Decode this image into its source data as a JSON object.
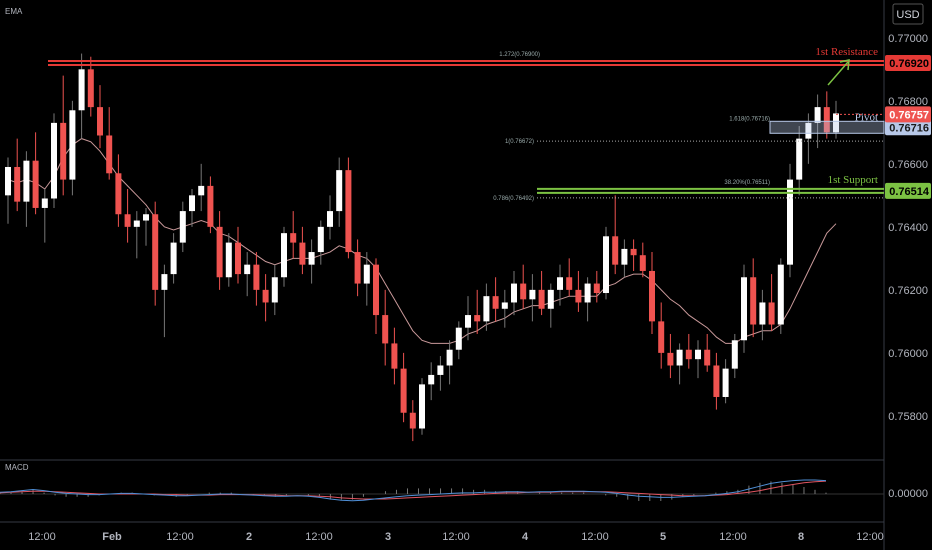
{
  "header": {
    "indicator_label": "EMA",
    "currency": "USD"
  },
  "macd_panel": {
    "label": "MACD",
    "zero_label": "0.00000"
  },
  "colors": {
    "background": "#000000",
    "bull_candle": "#ffffff",
    "bear_candle": "#ef5350",
    "resistance": "#e53935",
    "support": "#7cc243",
    "pivot_band": "#b7c8e8",
    "ema": "#c9999a",
    "macd_line": "#4f8fd6",
    "signal_line": "#e05561",
    "axis_text": "#b2b5be",
    "grid_border": "#2a2e39"
  },
  "chart_data": {
    "type": "candlestick",
    "price_axis": {
      "ticks": [
        "0.77000",
        "0.76800",
        "0.76600",
        "0.76400",
        "0.76200",
        "0.76000",
        "0.75800"
      ],
      "range": [
        0.7566,
        0.7712
      ]
    },
    "time_axis": {
      "ticks": [
        "12:00",
        "Feb",
        "12:00",
        "2",
        "12:00",
        "3",
        "12:00",
        "4",
        "12:00",
        "5",
        "12:00",
        "8",
        "12:00"
      ]
    },
    "levels": [
      {
        "name": "1st Resistance",
        "value": 0.7692,
        "price_label": "0.76920",
        "fib_label": "1.272(0.76900)"
      },
      {
        "name": "Pivot",
        "value": 0.76716,
        "price_label": "0.76716",
        "fib_label": "1.618(0.76716)"
      },
      {
        "name": "1st Support",
        "value": 0.76514,
        "price_label": "0.76514",
        "fib_label": "38.20%(0.76511)"
      }
    ],
    "fib_labels": [
      {
        "text": "1(0.76672)",
        "value": 0.76672
      },
      {
        "text": "0.786(0.76492)",
        "value": 0.76492
      }
    ],
    "current_price": {
      "value": 0.76757,
      "label": "0.76757"
    },
    "candles": [
      [
        0.765,
        0.7662,
        0.7641,
        0.7659
      ],
      [
        0.7659,
        0.7668,
        0.7645,
        0.7648
      ],
      [
        0.7648,
        0.7664,
        0.764,
        0.7661
      ],
      [
        0.7661,
        0.767,
        0.7644,
        0.7646
      ],
      [
        0.7646,
        0.7652,
        0.7635,
        0.7649
      ],
      [
        0.7649,
        0.7676,
        0.7646,
        0.7673
      ],
      [
        0.7673,
        0.7688,
        0.765,
        0.7655
      ],
      [
        0.7655,
        0.768,
        0.765,
        0.7677
      ],
      [
        0.7677,
        0.7695,
        0.7668,
        0.769
      ],
      [
        0.769,
        0.7694,
        0.7675,
        0.7678
      ],
      [
        0.7678,
        0.7685,
        0.7665,
        0.7669
      ],
      [
        0.7669,
        0.7678,
        0.7655,
        0.7657
      ],
      [
        0.7657,
        0.7663,
        0.764,
        0.7644
      ],
      [
        0.7644,
        0.7652,
        0.7635,
        0.764
      ],
      [
        0.764,
        0.7645,
        0.763,
        0.7642
      ],
      [
        0.7642,
        0.7646,
        0.7634,
        0.7644
      ],
      [
        0.7644,
        0.7648,
        0.7615,
        0.762
      ],
      [
        0.762,
        0.7628,
        0.7605,
        0.7625
      ],
      [
        0.7625,
        0.7638,
        0.7622,
        0.7635
      ],
      [
        0.7635,
        0.7648,
        0.7632,
        0.7645
      ],
      [
        0.7645,
        0.7652,
        0.764,
        0.765
      ],
      [
        0.765,
        0.766,
        0.7645,
        0.7653
      ],
      [
        0.7653,
        0.7656,
        0.7638,
        0.764
      ],
      [
        0.764,
        0.7645,
        0.762,
        0.7624
      ],
      [
        0.7624,
        0.7638,
        0.7621,
        0.7635
      ],
      [
        0.7635,
        0.764,
        0.7622,
        0.7625
      ],
      [
        0.7625,
        0.7632,
        0.7618,
        0.7628
      ],
      [
        0.7628,
        0.7632,
        0.7615,
        0.762
      ],
      [
        0.762,
        0.7625,
        0.761,
        0.7616
      ],
      [
        0.7616,
        0.7628,
        0.7612,
        0.7624
      ],
      [
        0.7624,
        0.764,
        0.7621,
        0.7638
      ],
      [
        0.7638,
        0.7645,
        0.763,
        0.7635
      ],
      [
        0.7635,
        0.764,
        0.7625,
        0.7628
      ],
      [
        0.7628,
        0.7636,
        0.7622,
        0.7632
      ],
      [
        0.7632,
        0.7642,
        0.7628,
        0.764
      ],
      [
        0.764,
        0.765,
        0.7636,
        0.7645
      ],
      [
        0.7645,
        0.7662,
        0.764,
        0.7658
      ],
      [
        0.7658,
        0.7662,
        0.763,
        0.7632
      ],
      [
        0.7632,
        0.7636,
        0.7618,
        0.7622
      ],
      [
        0.7622,
        0.7632,
        0.7615,
        0.7628
      ],
      [
        0.7628,
        0.763,
        0.7606,
        0.7612
      ],
      [
        0.7612,
        0.762,
        0.7596,
        0.7603
      ],
      [
        0.7603,
        0.7608,
        0.759,
        0.7595
      ],
      [
        0.7595,
        0.76,
        0.7578,
        0.7581
      ],
      [
        0.7581,
        0.7585,
        0.7572,
        0.7576
      ],
      [
        0.7576,
        0.7592,
        0.7574,
        0.759
      ],
      [
        0.759,
        0.7597,
        0.7585,
        0.7593
      ],
      [
        0.7593,
        0.7599,
        0.7588,
        0.7596
      ],
      [
        0.7596,
        0.7604,
        0.759,
        0.7601
      ],
      [
        0.7601,
        0.761,
        0.7598,
        0.7608
      ],
      [
        0.7608,
        0.7618,
        0.7604,
        0.7612
      ],
      [
        0.7612,
        0.762,
        0.7606,
        0.761
      ],
      [
        0.761,
        0.7622,
        0.7607,
        0.7618
      ],
      [
        0.7618,
        0.7624,
        0.761,
        0.7614
      ],
      [
        0.7614,
        0.762,
        0.7608,
        0.7616
      ],
      [
        0.7616,
        0.7626,
        0.7612,
        0.7622
      ],
      [
        0.7622,
        0.7628,
        0.7614,
        0.7617
      ],
      [
        0.7617,
        0.7625,
        0.761,
        0.762
      ],
      [
        0.762,
        0.7626,
        0.7612,
        0.7614
      ],
      [
        0.7614,
        0.7622,
        0.7608,
        0.762
      ],
      [
        0.762,
        0.7628,
        0.7615,
        0.7624
      ],
      [
        0.7624,
        0.763,
        0.7618,
        0.762
      ],
      [
        0.762,
        0.7626,
        0.7613,
        0.7616
      ],
      [
        0.7616,
        0.7624,
        0.761,
        0.7622
      ],
      [
        0.7622,
        0.7626,
        0.7616,
        0.7619
      ],
      [
        0.7619,
        0.764,
        0.7617,
        0.7637
      ],
      [
        0.7637,
        0.765,
        0.7625,
        0.7628
      ],
      [
        0.7628,
        0.7636,
        0.7624,
        0.7633
      ],
      [
        0.7633,
        0.7636,
        0.7626,
        0.7631
      ],
      [
        0.7631,
        0.7635,
        0.7624,
        0.7626
      ],
      [
        0.7626,
        0.7632,
        0.7606,
        0.761
      ],
      [
        0.761,
        0.7616,
        0.7595,
        0.76
      ],
      [
        0.76,
        0.7606,
        0.7592,
        0.7596
      ],
      [
        0.7596,
        0.7603,
        0.759,
        0.7601
      ],
      [
        0.7601,
        0.7606,
        0.7595,
        0.7598
      ],
      [
        0.7598,
        0.7604,
        0.7592,
        0.7601
      ],
      [
        0.7601,
        0.7606,
        0.7594,
        0.7596
      ],
      [
        0.7596,
        0.76,
        0.7582,
        0.7586
      ],
      [
        0.7586,
        0.7598,
        0.7584,
        0.7595
      ],
      [
        0.7595,
        0.7606,
        0.7592,
        0.7604
      ],
      [
        0.7604,
        0.7628,
        0.76,
        0.7624
      ],
      [
        0.7624,
        0.763,
        0.7605,
        0.7609
      ],
      [
        0.7609,
        0.762,
        0.7604,
        0.7616
      ],
      [
        0.7616,
        0.7625,
        0.7607,
        0.7609
      ],
      [
        0.7609,
        0.763,
        0.7606,
        0.7628
      ],
      [
        0.7628,
        0.766,
        0.7624,
        0.7655
      ],
      [
        0.7655,
        0.7672,
        0.765,
        0.7668
      ],
      [
        0.7668,
        0.7676,
        0.766,
        0.7673
      ],
      [
        0.7673,
        0.7682,
        0.7665,
        0.7678
      ],
      [
        0.7678,
        0.7683,
        0.7668,
        0.767
      ],
      [
        0.767,
        0.768,
        0.7668,
        0.7676
      ]
    ],
    "ema": [
      0.7655,
      0.7654,
      0.7655,
      0.7654,
      0.7652,
      0.7656,
      0.7662,
      0.7666,
      0.7668,
      0.7667,
      0.7664,
      0.766,
      0.7656,
      0.7653,
      0.765,
      0.7647,
      0.7643,
      0.764,
      0.7639,
      0.764,
      0.7641,
      0.7642,
      0.7641,
      0.7638,
      0.7637,
      0.7635,
      0.7633,
      0.7631,
      0.7629,
      0.7628,
      0.7629,
      0.763,
      0.763,
      0.763,
      0.7631,
      0.7632,
      0.7634,
      0.7633,
      0.7631,
      0.763,
      0.7627,
      0.7622,
      0.7617,
      0.7612,
      0.7607,
      0.7604,
      0.7603,
      0.7603,
      0.7603,
      0.7604,
      0.7606,
      0.7607,
      0.7609,
      0.761,
      0.7611,
      0.7613,
      0.7614,
      0.7615,
      0.7615,
      0.7616,
      0.7617,
      0.7618,
      0.7618,
      0.7618,
      0.7618,
      0.7621,
      0.7622,
      0.7624,
      0.7625,
      0.7625,
      0.7623,
      0.762,
      0.7617,
      0.7615,
      0.7612,
      0.761,
      0.7608,
      0.7605,
      0.7603,
      0.7603,
      0.7605,
      0.7606,
      0.7607,
      0.7607,
      0.7609,
      0.7614,
      0.762,
      0.7626,
      0.7632,
      0.7638,
      0.7641
    ],
    "macd": {
      "macd_line": [
        0.3,
        0.4,
        0.6,
        0.8,
        0.6,
        0.3,
        0.1,
        0.0,
        -0.1,
        -0.1,
        0.0,
        0.1,
        0.1,
        0.0,
        -0.1,
        -0.2,
        -0.3,
        -0.3,
        -0.2,
        -0.1,
        0.0,
        0.0,
        -0.1,
        -0.2,
        -0.3,
        -0.4,
        -0.4,
        -0.3,
        -0.4,
        -0.6,
        -0.9,
        -1.1,
        -1.2,
        -1.1,
        -0.9,
        -0.7,
        -0.5,
        -0.3,
        -0.2,
        -0.1,
        0.0,
        0.1,
        0.2,
        0.2,
        0.3,
        0.3,
        0.4,
        0.4,
        0.3,
        0.4,
        0.4,
        0.5,
        0.5,
        0.5,
        0.4,
        0.3,
        0.1,
        -0.2,
        -0.4,
        -0.5,
        -0.6,
        -0.6,
        -0.5,
        -0.4,
        -0.3,
        -0.1,
        0.1,
        0.4,
        0.9,
        1.4,
        1.9,
        2.2,
        2.4,
        2.5,
        2.5,
        2.4
      ],
      "signal_line": [
        0.2,
        0.3,
        0.4,
        0.5,
        0.5,
        0.4,
        0.3,
        0.2,
        0.1,
        0.0,
        0.0,
        0.0,
        0.0,
        0.0,
        0.0,
        -0.1,
        -0.1,
        -0.2,
        -0.2,
        -0.2,
        -0.1,
        -0.1,
        -0.1,
        -0.1,
        -0.2,
        -0.2,
        -0.3,
        -0.3,
        -0.3,
        -0.4,
        -0.5,
        -0.7,
        -0.8,
        -0.9,
        -0.9,
        -0.9,
        -0.8,
        -0.7,
        -0.6,
        -0.5,
        -0.4,
        -0.3,
        -0.2,
        -0.1,
        0.0,
        0.1,
        0.2,
        0.2,
        0.3,
        0.3,
        0.3,
        0.4,
        0.4,
        0.4,
        0.4,
        0.4,
        0.3,
        0.2,
        0.1,
        0.0,
        -0.1,
        -0.2,
        -0.3,
        -0.3,
        -0.3,
        -0.2,
        -0.1,
        0.1,
        0.3,
        0.6,
        1.0,
        1.4,
        1.7,
        2.0,
        2.2,
        2.3
      ]
    }
  }
}
